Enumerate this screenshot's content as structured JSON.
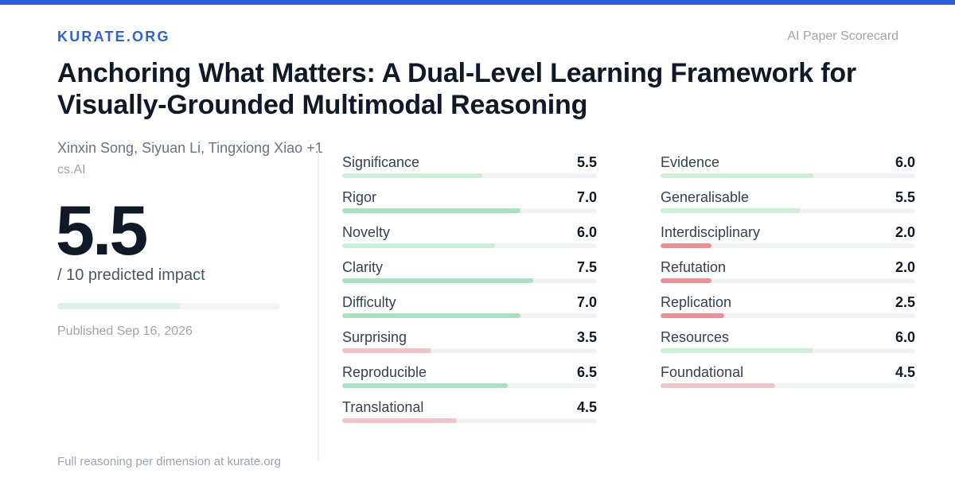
{
  "brand": "KURATE.ORG",
  "kicker": "AI Paper Scorecard",
  "paper": {
    "title": "Anchoring What Matters: A Dual-Level Learning Framework for Visually-Grounded Multimodal Reasoning",
    "authors": "Xinxin Song, Siyuan Li, Tingxiong Xiao +1",
    "category": "cs.AI"
  },
  "overall": {
    "score": "5.5",
    "score_value": 5.5,
    "max": 10,
    "caption": "/ 10 predicted impact",
    "bar_color": "#dcf1e5"
  },
  "published": "Published Sep 16, 2026",
  "footer": "Full reasoning per dimension at kurate.org",
  "colors": {
    "high": "#a7e2c1",
    "mid": "#cdeedb",
    "low": "#f1c4c8",
    "very_low": "#ec8f96",
    "accent": "#2f62d9"
  },
  "dimensions_left": [
    {
      "label": "Significance",
      "value": "5.5",
      "score": 5.5,
      "color": "#cdeedb"
    },
    {
      "label": "Rigor",
      "value": "7.0",
      "score": 7.0,
      "color": "#a7e2c1"
    },
    {
      "label": "Novelty",
      "value": "6.0",
      "score": 6.0,
      "color": "#cdeedb"
    },
    {
      "label": "Clarity",
      "value": "7.5",
      "score": 7.5,
      "color": "#a7e2c1"
    },
    {
      "label": "Difficulty",
      "value": "7.0",
      "score": 7.0,
      "color": "#a7e2c1"
    },
    {
      "label": "Surprising",
      "value": "3.5",
      "score": 3.5,
      "color": "#f1c4c8"
    },
    {
      "label": "Reproducible",
      "value": "6.5",
      "score": 6.5,
      "color": "#a7e2c1"
    },
    {
      "label": "Translational",
      "value": "4.5",
      "score": 4.5,
      "color": "#f1c4c8"
    }
  ],
  "dimensions_right": [
    {
      "label": "Evidence",
      "value": "6.0",
      "score": 6.0,
      "color": "#cdeedb"
    },
    {
      "label": "Generalisable",
      "value": "5.5",
      "score": 5.5,
      "color": "#cdeedb"
    },
    {
      "label": "Interdisciplinary",
      "value": "2.0",
      "score": 2.0,
      "color": "#ec8f96"
    },
    {
      "label": "Refutation",
      "value": "2.0",
      "score": 2.0,
      "color": "#ec8f96"
    },
    {
      "label": "Replication",
      "value": "2.5",
      "score": 2.5,
      "color": "#ec8f96"
    },
    {
      "label": "Resources",
      "value": "6.0",
      "score": 6.0,
      "color": "#cdeedb"
    },
    {
      "label": "Foundational",
      "value": "4.5",
      "score": 4.5,
      "color": "#f1c4c8"
    }
  ]
}
